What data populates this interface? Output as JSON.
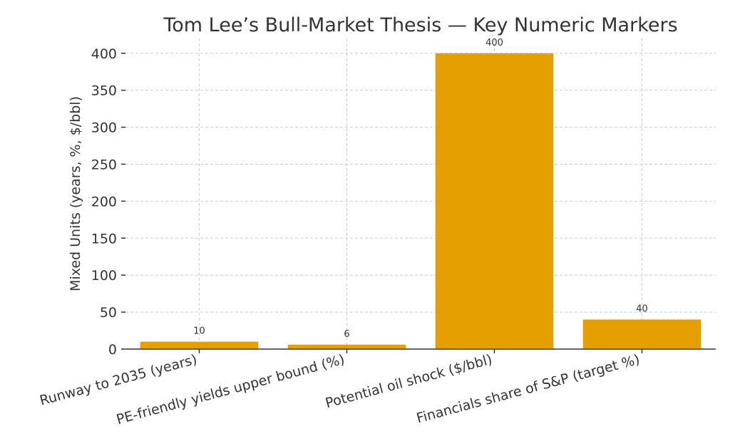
{
  "chart_data": {
    "type": "bar",
    "title": "Tom Lee’s Bull-Market Thesis — Key Numeric Markers",
    "xlabel": "",
    "ylabel": "Mixed Units (years, %, $/bbl)",
    "categories": [
      "Runway to 2035 (years)",
      "PE-friendly yields upper bound (%)",
      "Potential oil shock ($/bbl)",
      "Financials share of S&P (target %)"
    ],
    "values": [
      10,
      6,
      400,
      40
    ],
    "data_labels": [
      "10",
      "6",
      "400",
      "40"
    ],
    "ylim": [
      0,
      420
    ],
    "yticks": [
      0,
      50,
      100,
      150,
      200,
      250,
      300,
      350,
      400
    ],
    "grid": true,
    "legend": "none",
    "bar_color": "#e5a000"
  }
}
